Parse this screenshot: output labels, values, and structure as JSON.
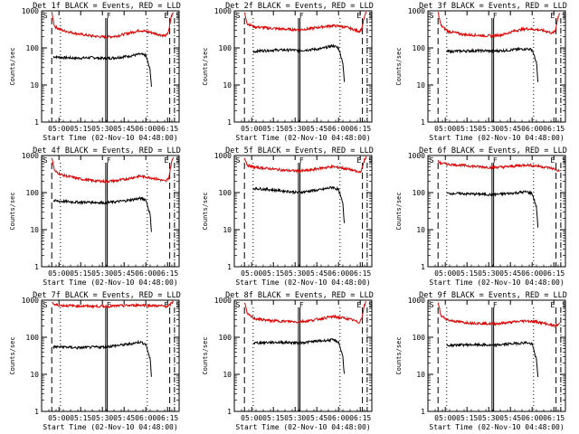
{
  "colors": {
    "events": "#000000",
    "lld": "#e00000",
    "axes": "#000000",
    "background": "#ffffff"
  },
  "shared": {
    "xlabel": "Start Time (02-Nov-10 04:48:00)",
    "ylabel": "Counts/sec",
    "x_ticks": [
      "05:00",
      "05:15",
      "05:30",
      "05:45",
      "06:00",
      "06:15"
    ],
    "y_ticks": [
      "1",
      "10",
      "100",
      "1000"
    ],
    "marker_labels": [
      "S",
      "F",
      "E",
      "S"
    ]
  },
  "chart_data": [
    {
      "type": "line",
      "title": "Det 1f BLACK = Events, RED = LLD",
      "x_unit": "minutes after 04:48:00",
      "y_scale": "log",
      "xlim": [
        0,
        95
      ],
      "ylim": [
        1,
        1000
      ],
      "markers": {
        "dashed": [
          7,
          88.5
        ],
        "dotted": [
          13,
          73
        ],
        "solid": [
          44.3,
          45.4
        ],
        "dash_dot": [
          91.8
        ]
      },
      "series": [
        {
          "name": "Events",
          "x": [
            8,
            15,
            25,
            35,
            44,
            52,
            60,
            68,
            72,
            75,
            76
          ],
          "y": [
            58,
            55,
            53,
            55,
            52,
            55,
            60,
            68,
            63,
            25,
            8
          ]
        },
        {
          "name": "LLD",
          "x": [
            7,
            9,
            14,
            25,
            35,
            44,
            52,
            60,
            68,
            76,
            82,
            86,
            88,
            89.5,
            91
          ],
          "y": [
            900,
            380,
            300,
            240,
            210,
            195,
            210,
            250,
            300,
            260,
            225,
            210,
            300,
            700,
            900
          ]
        }
      ]
    },
    {
      "type": "line",
      "title": "Det 2f BLACK = Events, RED = LLD",
      "x_unit": "minutes after 04:48:00",
      "y_scale": "log",
      "xlim": [
        0,
        95
      ],
      "ylim": [
        1,
        1000
      ],
      "markers": {
        "dashed": [
          7,
          88.5
        ],
        "dotted": [
          13,
          73
        ],
        "solid": [
          44.3,
          45.4
        ],
        "dash_dot": [
          91.8
        ]
      },
      "series": [
        {
          "name": "Events",
          "x": [
            13,
            20,
            30,
            40,
            44,
            52,
            60,
            68,
            72,
            75,
            76
          ],
          "y": [
            80,
            85,
            88,
            88,
            85,
            90,
            95,
            115,
            100,
            40,
            12
          ]
        },
        {
          "name": "LLD",
          "x": [
            7,
            9,
            14,
            25,
            35,
            44,
            52,
            60,
            68,
            76,
            82,
            86,
            88,
            89.5,
            91
          ],
          "y": [
            900,
            450,
            370,
            340,
            320,
            310,
            330,
            370,
            400,
            370,
            320,
            280,
            320,
            600,
            900
          ]
        }
      ]
    },
    {
      "type": "line",
      "title": "Det 3f BLACK = Events, RED = LLD",
      "x_unit": "minutes after 04:48:00",
      "y_scale": "log",
      "xlim": [
        0,
        95
      ],
      "ylim": [
        1,
        1000
      ],
      "markers": {
        "dashed": [
          7,
          88.5
        ],
        "dotted": [
          13,
          73
        ],
        "solid": [
          44.3,
          45.4
        ],
        "dash_dot": [
          91.8
        ]
      },
      "series": [
        {
          "name": "Events",
          "x": [
            13,
            20,
            30,
            40,
            44,
            52,
            60,
            68,
            72,
            75,
            76
          ],
          "y": [
            80,
            82,
            84,
            84,
            82,
            85,
            90,
            95,
            90,
            40,
            12
          ]
        },
        {
          "name": "LLD",
          "x": [
            7,
            9,
            14,
            25,
            35,
            44,
            52,
            60,
            68,
            76,
            82,
            86,
            88,
            89.5,
            91
          ],
          "y": [
            900,
            400,
            280,
            230,
            220,
            210,
            230,
            290,
            330,
            310,
            280,
            250,
            280,
            600,
            900
          ]
        }
      ]
    },
    {
      "type": "line",
      "title": "Det 4f BLACK = Events, RED = LLD",
      "x_unit": "minutes after 04:48:00",
      "y_scale": "log",
      "xlim": [
        0,
        95
      ],
      "ylim": [
        1,
        1000
      ],
      "markers": {
        "dashed": [
          7,
          88.5
        ],
        "dotted": [
          13,
          73
        ],
        "solid": [
          44.3,
          45.4
        ],
        "dash_dot": [
          91.8
        ]
      },
      "series": [
        {
          "name": "Events",
          "x": [
            8,
            15,
            25,
            35,
            44,
            52,
            60,
            68,
            72,
            75,
            76
          ],
          "y": [
            60,
            58,
            55,
            55,
            53,
            57,
            62,
            70,
            65,
            25,
            8
          ]
        },
        {
          "name": "LLD",
          "x": [
            7,
            9,
            14,
            25,
            35,
            44,
            52,
            60,
            68,
            76,
            82,
            86,
            88,
            89.5,
            91
          ],
          "y": [
            900,
            380,
            300,
            240,
            210,
            200,
            210,
            240,
            280,
            250,
            220,
            200,
            260,
            600,
            900
          ]
        }
      ]
    },
    {
      "type": "line",
      "title": "Det 5f BLACK = Events, RED = LLD",
      "x_unit": "minutes after 04:48:00",
      "y_scale": "log",
      "xlim": [
        0,
        95
      ],
      "ylim": [
        1,
        1000
      ],
      "markers": {
        "dashed": [
          7,
          88.5
        ],
        "dotted": [
          13,
          73
        ],
        "solid": [
          44.3,
          45.4
        ],
        "dash_dot": [
          91.8
        ]
      },
      "series": [
        {
          "name": "Events",
          "x": [
            13,
            20,
            30,
            40,
            44,
            52,
            60,
            68,
            72,
            75,
            76
          ],
          "y": [
            130,
            125,
            115,
            105,
            100,
            110,
            120,
            140,
            120,
            50,
            15
          ]
        },
        {
          "name": "LLD",
          "x": [
            7,
            9,
            14,
            25,
            35,
            44,
            52,
            60,
            68,
            76,
            82,
            86,
            88,
            89.5,
            91
          ],
          "y": [
            900,
            550,
            480,
            440,
            400,
            380,
            400,
            460,
            500,
            450,
            400,
            350,
            400,
            700,
            900
          ]
        }
      ]
    },
    {
      "type": "line",
      "title": "Det 6f BLACK = Events, RED = LLD",
      "x_unit": "minutes after 04:48:00",
      "y_scale": "log",
      "xlim": [
        0,
        95
      ],
      "ylim": [
        1,
        1000
      ],
      "markers": {
        "dashed": [
          7,
          88.5
        ],
        "dotted": [
          13,
          73
        ],
        "solid": [
          44.3,
          45.4
        ],
        "dash_dot": [
          91.8
        ]
      },
      "series": [
        {
          "name": "Events",
          "x": [
            13,
            20,
            30,
            40,
            44,
            52,
            60,
            68,
            72,
            75,
            76
          ],
          "y": [
            95,
            95,
            92,
            90,
            88,
            92,
            98,
            105,
            95,
            40,
            12
          ]
        },
        {
          "name": "LLD",
          "x": [
            7,
            9,
            14,
            25,
            35,
            44,
            52,
            60,
            68,
            76,
            82,
            86,
            88,
            89.5,
            91
          ],
          "y": [
            700,
            620,
            580,
            540,
            500,
            480,
            490,
            520,
            560,
            520,
            480,
            450,
            420,
            400,
            380
          ]
        }
      ]
    },
    {
      "type": "line",
      "title": "Det 7f BLACK = Events, RED = LLD",
      "x_unit": "minutes after 04:48:00",
      "y_scale": "log",
      "xlim": [
        0,
        95
      ],
      "ylim": [
        1,
        1000
      ],
      "markers": {
        "dashed": [
          7,
          88.5
        ],
        "dotted": [
          13,
          73
        ],
        "solid": [
          44.3,
          45.4
        ],
        "dash_dot": [
          91.8
        ]
      },
      "series": [
        {
          "name": "Events",
          "x": [
            8,
            15,
            25,
            35,
            44,
            52,
            60,
            68,
            72,
            75,
            76
          ],
          "y": [
            55,
            55,
            52,
            54,
            55,
            60,
            65,
            75,
            65,
            25,
            8
          ]
        },
        {
          "name": "LLD",
          "x": [
            7,
            9,
            14,
            25,
            35,
            44,
            52,
            60,
            68,
            76,
            82,
            86,
            88,
            89.5,
            91
          ],
          "y": [
            900,
            750,
            720,
            700,
            690,
            680,
            700,
            720,
            740,
            720,
            700,
            680,
            700,
            820,
            900
          ]
        }
      ]
    },
    {
      "type": "line",
      "title": "Det 8f BLACK = Events, RED = LLD",
      "x_unit": "minutes after 04:48:00",
      "y_scale": "log",
      "xlim": [
        0,
        95
      ],
      "ylim": [
        1,
        1000
      ],
      "markers": {
        "dashed": [
          7,
          88.5
        ],
        "dotted": [
          13,
          73
        ],
        "solid": [
          44.3,
          45.4
        ],
        "dash_dot": [
          91.8
        ]
      },
      "series": [
        {
          "name": "Events",
          "x": [
            13,
            20,
            30,
            40,
            44,
            52,
            60,
            68,
            72,
            75,
            76
          ],
          "y": [
            70,
            72,
            73,
            72,
            70,
            75,
            80,
            85,
            75,
            30,
            10
          ]
        },
        {
          "name": "LLD",
          "x": [
            7,
            9,
            14,
            25,
            35,
            44,
            52,
            60,
            68,
            76,
            82,
            86,
            88,
            89.5,
            91
          ],
          "y": [
            900,
            420,
            320,
            280,
            270,
            260,
            280,
            320,
            360,
            330,
            290,
            250,
            320,
            650,
            900
          ]
        }
      ]
    },
    {
      "type": "line",
      "title": "Det 9f BLACK = Events, RED = LLD",
      "x_unit": "minutes after 04:48:00",
      "y_scale": "log",
      "xlim": [
        0,
        95
      ],
      "ylim": [
        1,
        1000
      ],
      "markers": {
        "dashed": [
          7,
          88.5
        ],
        "dotted": [
          13,
          73
        ],
        "solid": [
          44.3,
          45.4
        ],
        "dash_dot": [
          91.8
        ]
      },
      "series": [
        {
          "name": "Events",
          "x": [
            13,
            20,
            30,
            40,
            44,
            52,
            60,
            68,
            72,
            75,
            76
          ],
          "y": [
            60,
            62,
            63,
            62,
            60,
            64,
            68,
            72,
            65,
            25,
            8
          ]
        },
        {
          "name": "LLD",
          "x": [
            7,
            9,
            14,
            25,
            35,
            44,
            52,
            60,
            68,
            76,
            82,
            86,
            88,
            89.5,
            91
          ],
          "y": [
            900,
            380,
            290,
            250,
            240,
            230,
            240,
            260,
            280,
            260,
            230,
            210,
            200,
            210,
            240
          ]
        }
      ]
    }
  ]
}
